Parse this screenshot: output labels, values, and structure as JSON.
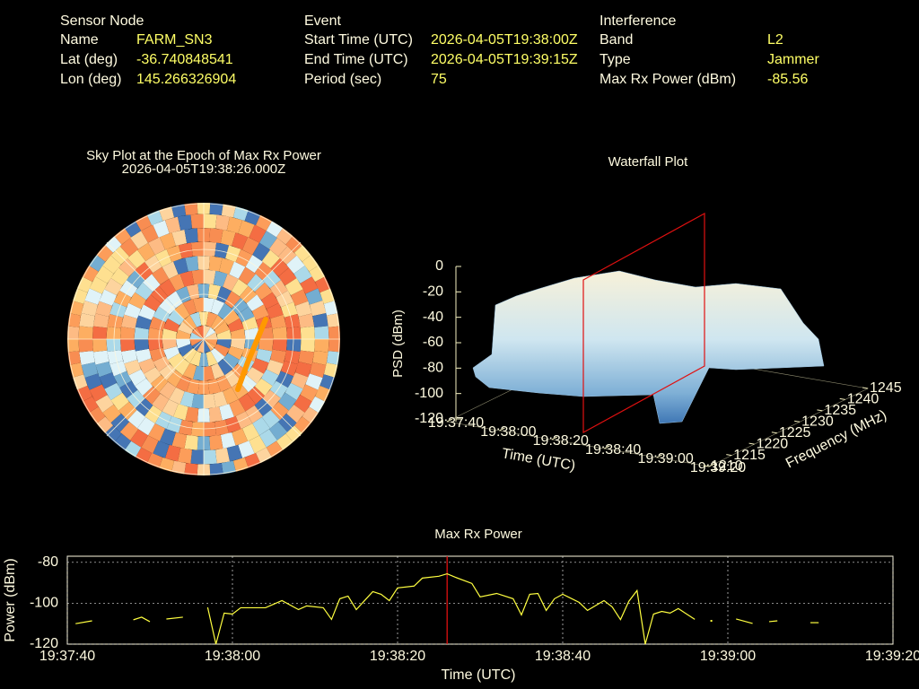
{
  "header": [
    {
      "title": "Sensor Node",
      "rows": [
        [
          "Name",
          "FARM_SN3"
        ],
        [
          "Lat (deg)",
          "-36.740848541"
        ],
        [
          "Lon (deg)",
          "145.266326904"
        ]
      ]
    },
    {
      "title": "Event",
      "rows": [
        [
          "Start Time (UTC)",
          "2026-04-05T19:38:00Z"
        ],
        [
          "End Time (UTC)",
          "2026-04-05T19:39:15Z"
        ],
        [
          "Period (sec)",
          "75"
        ]
      ]
    },
    {
      "title": "Interference",
      "rows": [
        [
          "Band",
          "L2"
        ],
        [
          "Type",
          "Jammer"
        ],
        [
          "Max Rx Power (dBm)",
          "-85.56"
        ]
      ]
    }
  ],
  "sky_plot": {
    "title": "Sky Plot at the Epoch of Max Rx Power",
    "subtitle": "2026-04-05T19:38:26.000Z"
  },
  "waterfall": {
    "title": "Waterfall Plot",
    "zlabel": "PSD (dBm)",
    "zticks": [
      0,
      -20,
      -40,
      -60,
      -80,
      -100,
      -120
    ],
    "xlabel": "Time (UTC)",
    "xticks": [
      "19:37:40",
      "19:38:00",
      "19:38:20",
      "19:38:40",
      "19:39:00",
      "19:39:20"
    ],
    "ylabel": "Frequency (MHz)",
    "yticks": [
      1210,
      1215,
      1220,
      1225,
      1230,
      1235,
      1240,
      1245
    ]
  },
  "chart_data": {
    "type": "line",
    "title": "Max Rx Power",
    "xlabel": "Time (UTC)",
    "ylabel": "Power (dBm)",
    "xlim": [
      "19:37:40",
      "19:39:20"
    ],
    "xticks": [
      "19:37:40",
      "19:38:00",
      "19:38:20",
      "19:38:40",
      "19:39:00",
      "19:39:20"
    ],
    "ylim": [
      -120,
      -77
    ],
    "yticks": [
      -80,
      -100,
      -120
    ],
    "grid": true,
    "marker_x": "19:38:26",
    "x": [
      "19:37:41",
      "19:37:43",
      "19:37:45",
      "19:37:48",
      "19:37:49",
      "19:37:50",
      "19:37:51",
      "19:37:52",
      "19:37:54",
      "19:37:55",
      "19:37:57",
      "19:37:58",
      "19:37:59",
      "19:38:00",
      "19:38:01",
      "19:38:02",
      "19:38:04",
      "19:38:06",
      "19:38:08",
      "19:38:09",
      "19:38:11",
      "19:38:12",
      "19:38:13",
      "19:38:14",
      "19:38:15",
      "19:38:16",
      "19:38:17",
      "19:38:18",
      "19:38:19",
      "19:38:20",
      "19:38:22",
      "19:38:23",
      "19:38:25",
      "19:38:26",
      "19:38:27",
      "19:38:29",
      "19:38:30",
      "19:38:32",
      "19:38:34",
      "19:38:35",
      "19:38:36",
      "19:38:37",
      "19:38:38",
      "19:38:39",
      "19:38:40",
      "19:38:42",
      "19:38:43",
      "19:38:45",
      "19:38:46",
      "19:38:47",
      "19:38:48",
      "19:38:49",
      "19:38:50",
      "19:38:51",
      "19:38:52",
      "19:38:53",
      "19:38:54",
      "19:38:56",
      "19:38:57",
      "19:38:58",
      "19:38:59",
      "19:39:01",
      "19:39:03",
      "19:39:04",
      "19:39:05",
      "19:39:06",
      "19:39:07",
      "19:39:10",
      "19:39:11"
    ],
    "series": [
      {
        "name": "Max Rx Power",
        "color": "#ffff40",
        "values": [
          -110,
          -108.6,
          null,
          -108.1,
          -106.8,
          -109,
          null,
          -107.7,
          -106.8,
          null,
          -102,
          -120,
          -104.8,
          -105.3,
          -102.2,
          -102.2,
          -102.2,
          -98.7,
          -103.1,
          -101.3,
          -102.2,
          -107.9,
          -97.8,
          -96.5,
          -103.1,
          -98.7,
          -94.3,
          -95.6,
          -98.7,
          -92.5,
          -91.6,
          -87.7,
          -86.8,
          -85.6,
          -87.3,
          -90.3,
          -96.9,
          -95.2,
          -97.8,
          -105.7,
          -95.6,
          -95.2,
          -103.5,
          -97.8,
          -95.6,
          -99.6,
          -103.5,
          -98.7,
          -101.8,
          -108,
          -99.1,
          -93.8,
          -120,
          -105.3,
          -104,
          -104.8,
          -102.6,
          -107.9,
          null,
          -108.6,
          null,
          -107.7,
          -109.9,
          null,
          -109,
          -108.6,
          null,
          -109.5,
          -109.5
        ]
      }
    ]
  }
}
